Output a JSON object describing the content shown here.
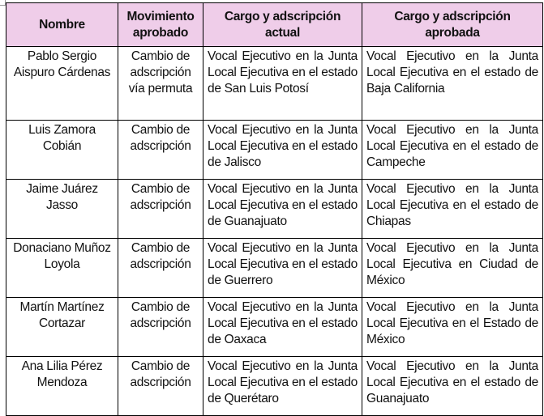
{
  "headers": [
    "Nombre",
    "Movimiento aprobado",
    "Cargo y adscripción actual",
    "Cargo y adscripción aprobada"
  ],
  "rows": [
    {
      "nombre": "Pablo Sergio Aispuro Cárdenas",
      "movimiento": "Cambio de adscripción vía permuta",
      "actual": "Vocal Ejecutivo en la Junta Local Ejecutiva en el estado de San Luis Potosí",
      "aprobada": "Vocal Ejecutivo en la Junta Local Ejecutiva en el estado de Baja California"
    },
    {
      "nombre": "Luis Zamora Cobián",
      "movimiento": "Cambio de adscripción",
      "actual": "Vocal Ejecutivo en la Junta Local Ejecutiva en el estado de Jalisco",
      "aprobada": "Vocal Ejecutivo en la Junta Local Ejecutiva en el estado de Campeche"
    },
    {
      "nombre": "Jaime Juárez Jasso",
      "movimiento": "Cambio de adscripción",
      "actual": "Vocal Ejecutivo en la Junta Local Ejecutiva en el estado de Guanajuato",
      "aprobada": "Vocal Ejecutivo en la Junta Local Ejecutiva en el estado de Chiapas"
    },
    {
      "nombre": "Donaciano Muñoz Loyola",
      "movimiento": "Cambio de adscripción",
      "actual": "Vocal Ejecutivo en la Junta Local Ejecutiva en el estado de Guerrero",
      "aprobada": "Vocal Ejecutivo en la Junta Local Ejecutiva en Ciudad de México"
    },
    {
      "nombre": "Martín Martínez Cortazar",
      "movimiento": "Cambio de adscripción",
      "actual": "Vocal Ejecutivo en la Junta Local Ejecutiva en el estado de Oaxaca",
      "aprobada": "Vocal Ejecutivo en la Junta Local Ejecutiva en el Estado de México"
    },
    {
      "nombre": "Ana Lilia Pérez Mendoza",
      "movimiento": "Cambio de adscripción",
      "actual": "Vocal Ejecutivo en la Junta Local Ejecutiva en el estado de Querétaro",
      "aprobada": "Vocal Ejecutivo en la Junta Local Ejecutiva en el estado de Guanajuato"
    }
  ]
}
